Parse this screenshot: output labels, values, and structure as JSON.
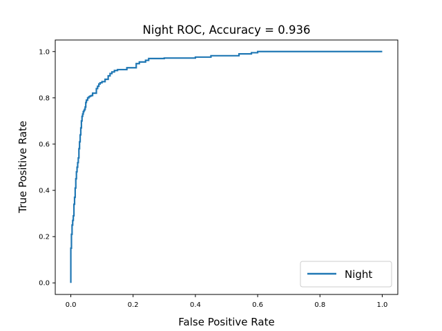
{
  "chart_data": {
    "type": "line",
    "title": "Night ROC, Accuracy = 0.936",
    "xlabel": "False Positive Rate",
    "ylabel": "True Positive Rate",
    "xlim": [
      -0.05,
      1.05
    ],
    "ylim": [
      -0.05,
      1.05
    ],
    "xticks": [
      0.0,
      0.2,
      0.4,
      0.6,
      0.8,
      1.0
    ],
    "yticks": [
      0.0,
      0.2,
      0.4,
      0.6,
      0.8,
      1.0
    ],
    "xtick_labels": [
      "0.0",
      "0.2",
      "0.4",
      "0.6",
      "0.8",
      "1.0"
    ],
    "ytick_labels": [
      "0.0",
      "0.2",
      "0.4",
      "0.6",
      "0.8",
      "1.0"
    ],
    "grid": false,
    "legend": {
      "position": "lower-right"
    },
    "colors": {
      "series": "#1f77b4"
    },
    "series": [
      {
        "name": "Night",
        "x": [
          0.0,
          0.0,
          0.002,
          0.002,
          0.004,
          0.004,
          0.006,
          0.006,
          0.008,
          0.008,
          0.01,
          0.01,
          0.012,
          0.012,
          0.014,
          0.014,
          0.016,
          0.016,
          0.018,
          0.018,
          0.02,
          0.02,
          0.022,
          0.022,
          0.024,
          0.024,
          0.026,
          0.026,
          0.028,
          0.028,
          0.03,
          0.03,
          0.032,
          0.032,
          0.034,
          0.034,
          0.036,
          0.036,
          0.038,
          0.038,
          0.04,
          0.04,
          0.042,
          0.042,
          0.044,
          0.044,
          0.046,
          0.046,
          0.048,
          0.048,
          0.05,
          0.05,
          0.054,
          0.054,
          0.058,
          0.058,
          0.062,
          0.062,
          0.066,
          0.066,
          0.07,
          0.07,
          0.082,
          0.082,
          0.086,
          0.086,
          0.09,
          0.09,
          0.094,
          0.094,
          0.1,
          0.1,
          0.11,
          0.11,
          0.12,
          0.12,
          0.126,
          0.126,
          0.132,
          0.132,
          0.14,
          0.14,
          0.15,
          0.15,
          0.18,
          0.18,
          0.21,
          0.21,
          0.22,
          0.22,
          0.24,
          0.24,
          0.25,
          0.25,
          0.3,
          0.3,
          0.4,
          0.4,
          0.45,
          0.45,
          0.54,
          0.54,
          0.58,
          0.58,
          0.6,
          0.6,
          1.0
        ],
        "y": [
          0.0,
          0.15,
          0.15,
          0.21,
          0.21,
          0.25,
          0.25,
          0.27,
          0.27,
          0.29,
          0.29,
          0.34,
          0.34,
          0.37,
          0.37,
          0.41,
          0.41,
          0.45,
          0.45,
          0.48,
          0.48,
          0.5,
          0.5,
          0.52,
          0.52,
          0.54,
          0.54,
          0.58,
          0.58,
          0.61,
          0.61,
          0.64,
          0.64,
          0.67,
          0.67,
          0.7,
          0.7,
          0.72,
          0.72,
          0.73,
          0.73,
          0.74,
          0.74,
          0.745,
          0.745,
          0.75,
          0.75,
          0.76,
          0.76,
          0.78,
          0.78,
          0.79,
          0.79,
          0.8,
          0.8,
          0.805,
          0.805,
          0.808,
          0.808,
          0.81,
          0.81,
          0.82,
          0.82,
          0.84,
          0.84,
          0.85,
          0.85,
          0.86,
          0.86,
          0.865,
          0.865,
          0.87,
          0.87,
          0.88,
          0.88,
          0.895,
          0.895,
          0.905,
          0.905,
          0.912,
          0.912,
          0.918,
          0.918,
          0.922,
          0.922,
          0.93,
          0.93,
          0.948,
          0.948,
          0.955,
          0.955,
          0.962,
          0.962,
          0.97,
          0.97,
          0.972,
          0.972,
          0.976,
          0.976,
          0.982,
          0.982,
          0.99,
          0.99,
          0.995,
          0.995,
          1.0,
          1.0
        ]
      }
    ]
  }
}
